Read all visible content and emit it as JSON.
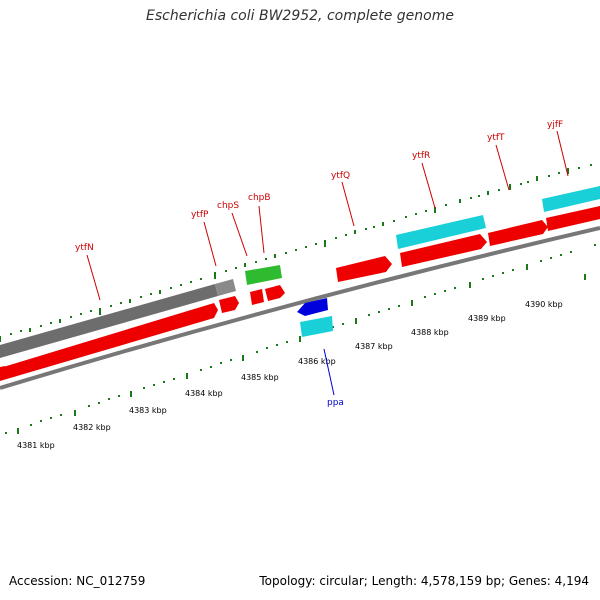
{
  "title": "Escherichia coli BW2952, complete genome",
  "footer": {
    "accession": "Accession: NC_012759",
    "stats": "Topology: circular; Length: 4,578,159 bp; Genes: 4,194"
  },
  "colors": {
    "cds": "#ee0000",
    "other_gene": "#00d0d8",
    "pseudo": "#707070",
    "rna": "#22bb22",
    "minus_strand": "#0000dd",
    "backbone": "#888888",
    "tick": "#228822"
  },
  "ruler": {
    "outer_labels": [
      "4381 kbp",
      "4382 kbp",
      "4383 kbp",
      "4384 kbp",
      "4385 kbp",
      "4386 kbp",
      "4387 kbp",
      "4388 kbp",
      "4389 kbp",
      "4390 kbp"
    ]
  },
  "genes": [
    {
      "name": "ytfN",
      "type": "cds",
      "strand": "+"
    },
    {
      "name": "ytfP",
      "type": "cds",
      "strand": "+"
    },
    {
      "name": "chpS",
      "type": "cds",
      "strand": "+"
    },
    {
      "name": "chpB",
      "type": "rna",
      "strand": "+"
    },
    {
      "name": "ytfQ",
      "type": "cds",
      "strand": "+"
    },
    {
      "name": "ytfR",
      "type": "other_gene",
      "strand": "+"
    },
    {
      "name": "ytfT",
      "type": "cds",
      "strand": "+"
    },
    {
      "name": "yjfF",
      "type": "other_gene",
      "strand": "+"
    },
    {
      "name": "ppa",
      "type": "cds",
      "strand": "-"
    }
  ]
}
